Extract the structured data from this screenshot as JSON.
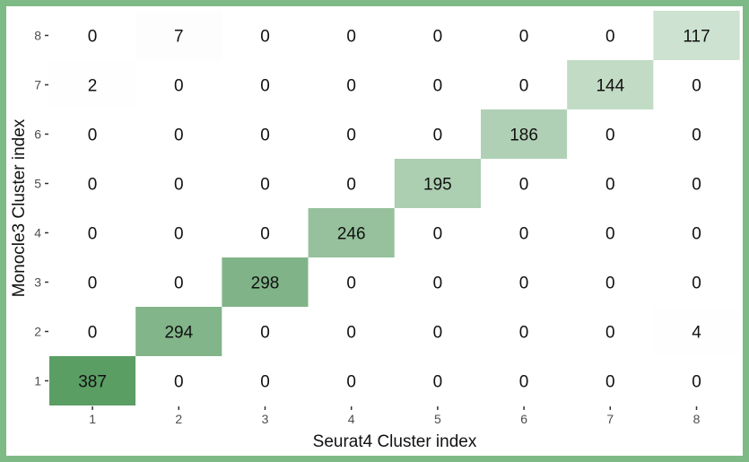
{
  "chart_data": {
    "type": "heatmap",
    "title": "",
    "xlabel": "Seurat4 Cluster index",
    "ylabel": "Monocle3 Cluster index",
    "x_categories": [
      "1",
      "2",
      "3",
      "4",
      "5",
      "6",
      "7",
      "8"
    ],
    "y_categories": [
      "1",
      "2",
      "3",
      "4",
      "5",
      "6",
      "7",
      "8"
    ],
    "values": [
      [
        387,
        0,
        0,
        0,
        0,
        0,
        0,
        0
      ],
      [
        0,
        294,
        0,
        0,
        0,
        0,
        0,
        4
      ],
      [
        0,
        0,
        298,
        0,
        0,
        0,
        0,
        0
      ],
      [
        0,
        0,
        0,
        246,
        0,
        0,
        0,
        0
      ],
      [
        0,
        0,
        0,
        0,
        195,
        0,
        0,
        0
      ],
      [
        0,
        0,
        0,
        0,
        0,
        186,
        0,
        0
      ],
      [
        2,
        0,
        0,
        0,
        0,
        0,
        144,
        0
      ],
      [
        0,
        7,
        0,
        0,
        0,
        0,
        0,
        117
      ]
    ],
    "color_low": "#ffffff",
    "color_high": "#5a9e64",
    "value_range": [
      0,
      387
    ],
    "grid": false,
    "legend": "none"
  },
  "frame_color": "#7dba86"
}
